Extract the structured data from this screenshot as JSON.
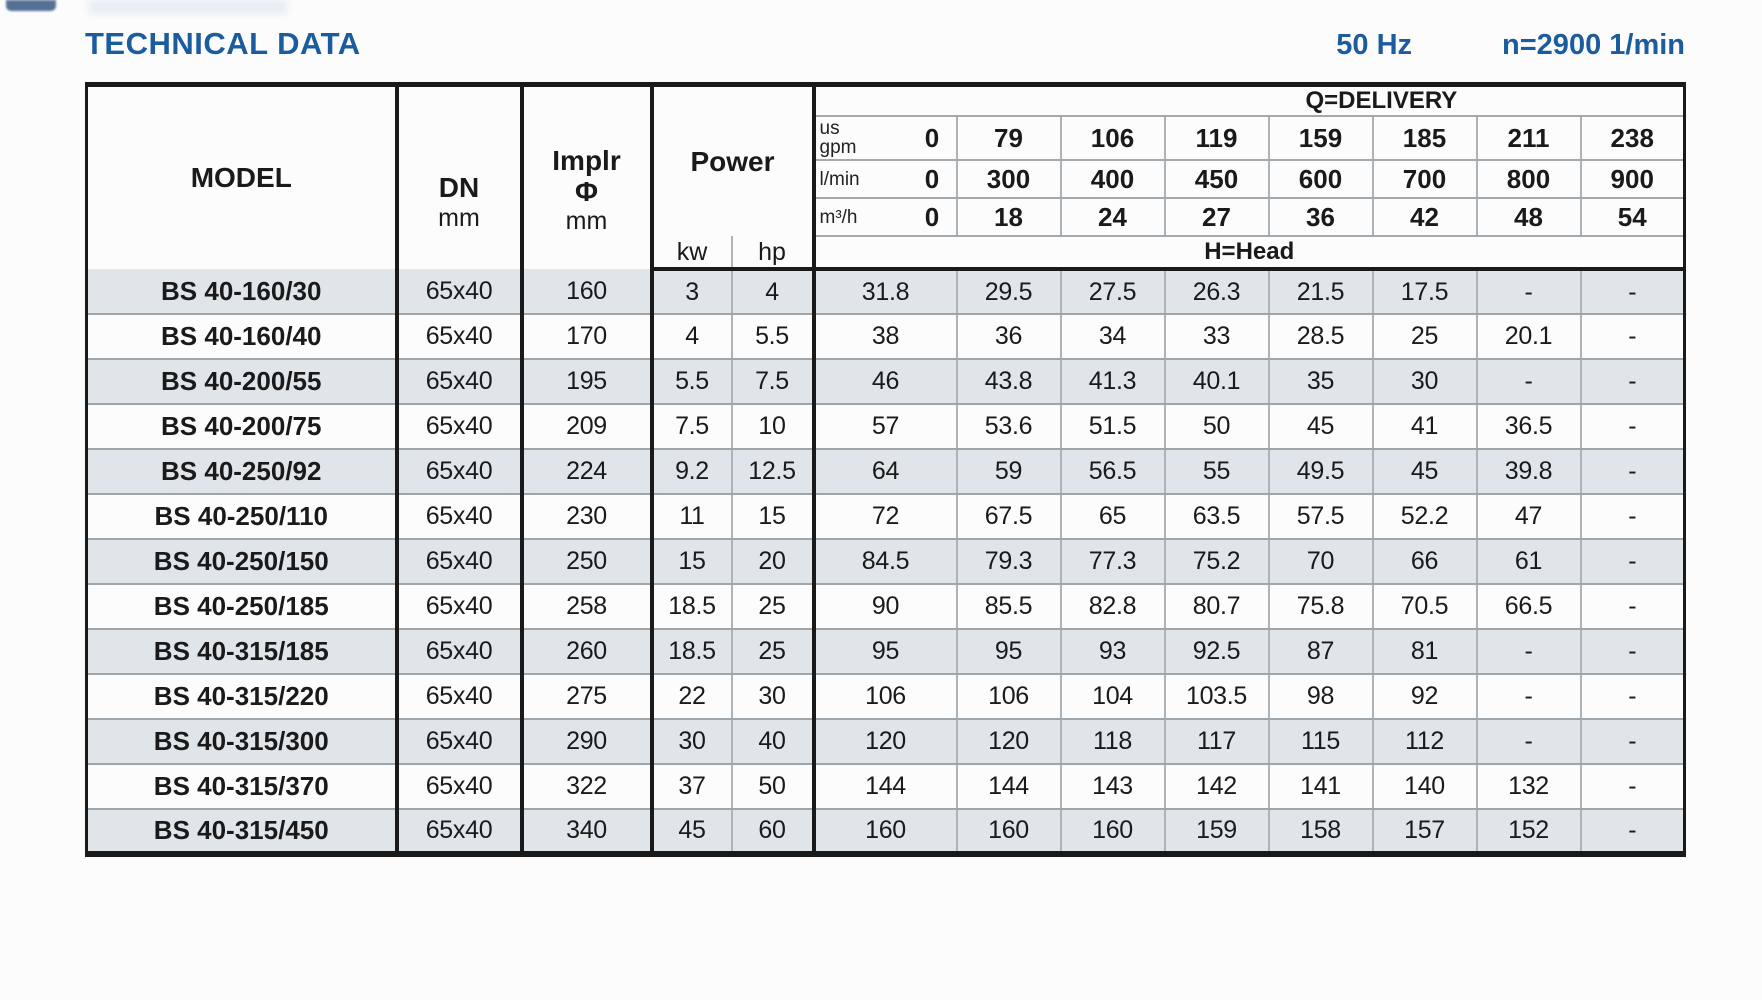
{
  "page": {
    "title": "TECHNICAL DATA",
    "frequency": "50 Hz",
    "speed": "n=2900 1/min"
  },
  "colors": {
    "title_blue": "#1b5c9e",
    "row_stripe": "#dfe5e9"
  },
  "table": {
    "headers": {
      "model": "MODEL",
      "dn": "DN",
      "implr_line1": "Implr",
      "implr_line2": "Φ",
      "power": "Power",
      "unit_mm": "mm",
      "unit_kw": "kw",
      "unit_hp": "hp",
      "q_delivery": "Q=DELIVERY",
      "h_head": "H=Head"
    },
    "delivery_rows": [
      {
        "unit_lines": [
          "us",
          "gpm"
        ],
        "values": [
          "0",
          "79",
          "106",
          "119",
          "159",
          "185",
          "211",
          "238"
        ]
      },
      {
        "unit_lines": [
          "l/min"
        ],
        "values": [
          "0",
          "300",
          "400",
          "450",
          "600",
          "700",
          "800",
          "900"
        ]
      },
      {
        "unit_lines": [
          "m³/h"
        ],
        "values": [
          "0",
          "18",
          "24",
          "27",
          "36",
          "42",
          "48",
          "54"
        ]
      }
    ],
    "rows": [
      {
        "model": "BS 40-160/30",
        "dn": "65x40",
        "implr": "160",
        "kw": "3",
        "hp": "4",
        "head": [
          "31.8",
          "29.5",
          "27.5",
          "26.3",
          "21.5",
          "17.5",
          "-",
          "-"
        ]
      },
      {
        "model": "BS 40-160/40",
        "dn": "65x40",
        "implr": "170",
        "kw": "4",
        "hp": "5.5",
        "head": [
          "38",
          "36",
          "34",
          "33",
          "28.5",
          "25",
          "20.1",
          "-"
        ]
      },
      {
        "model": "BS 40-200/55",
        "dn": "65x40",
        "implr": "195",
        "kw": "5.5",
        "hp": "7.5",
        "head": [
          "46",
          "43.8",
          "41.3",
          "40.1",
          "35",
          "30",
          "-",
          "-"
        ]
      },
      {
        "model": "BS 40-200/75",
        "dn": "65x40",
        "implr": "209",
        "kw": "7.5",
        "hp": "10",
        "head": [
          "57",
          "53.6",
          "51.5",
          "50",
          "45",
          "41",
          "36.5",
          "-"
        ]
      },
      {
        "model": "BS 40-250/92",
        "dn": "65x40",
        "implr": "224",
        "kw": "9.2",
        "hp": "12.5",
        "head": [
          "64",
          "59",
          "56.5",
          "55",
          "49.5",
          "45",
          "39.8",
          "-"
        ]
      },
      {
        "model": "BS 40-250/110",
        "dn": "65x40",
        "implr": "230",
        "kw": "11",
        "hp": "15",
        "head": [
          "72",
          "67.5",
          "65",
          "63.5",
          "57.5",
          "52.2",
          "47",
          "-"
        ]
      },
      {
        "model": "BS 40-250/150",
        "dn": "65x40",
        "implr": "250",
        "kw": "15",
        "hp": "20",
        "head": [
          "84.5",
          "79.3",
          "77.3",
          "75.2",
          "70",
          "66",
          "61",
          "-"
        ]
      },
      {
        "model": "BS 40-250/185",
        "dn": "65x40",
        "implr": "258",
        "kw": "18.5",
        "hp": "25",
        "head": [
          "90",
          "85.5",
          "82.8",
          "80.7",
          "75.8",
          "70.5",
          "66.5",
          "-"
        ]
      },
      {
        "model": "BS 40-315/185",
        "dn": "65x40",
        "implr": "260",
        "kw": "18.5",
        "hp": "25",
        "head": [
          "95",
          "95",
          "93",
          "92.5",
          "87",
          "81",
          "-",
          "-"
        ]
      },
      {
        "model": "BS 40-315/220",
        "dn": "65x40",
        "implr": "275",
        "kw": "22",
        "hp": "30",
        "head": [
          "106",
          "106",
          "104",
          "103.5",
          "98",
          "92",
          "-",
          "-"
        ]
      },
      {
        "model": "BS 40-315/300",
        "dn": "65x40",
        "implr": "290",
        "kw": "30",
        "hp": "40",
        "head": [
          "120",
          "120",
          "118",
          "117",
          "115",
          "112",
          "-",
          "-"
        ]
      },
      {
        "model": "BS 40-315/370",
        "dn": "65x40",
        "implr": "322",
        "kw": "37",
        "hp": "50",
        "head": [
          "144",
          "144",
          "143",
          "142",
          "141",
          "140",
          "132",
          "-"
        ]
      },
      {
        "model": "BS 40-315/450",
        "dn": "65x40",
        "implr": "340",
        "kw": "45",
        "hp": "60",
        "head": [
          "160",
          "160",
          "160",
          "159",
          "158",
          "157",
          "152",
          "-"
        ]
      }
    ]
  }
}
